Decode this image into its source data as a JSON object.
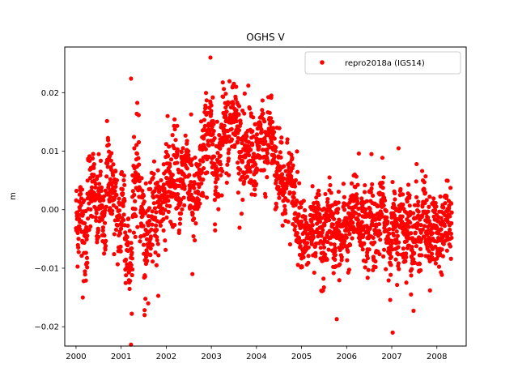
{
  "chart_data": {
    "type": "scatter",
    "title": "OGHS V",
    "xlabel": "",
    "ylabel": "m",
    "xlim": [
      1999.75,
      2008.65
    ],
    "ylim": [
      -0.0233,
      0.0278
    ],
    "x_ticks": [
      2000,
      2001,
      2002,
      2003,
      2004,
      2005,
      2006,
      2007,
      2008
    ],
    "x_tick_labels": [
      "2000",
      "2001",
      "2002",
      "2003",
      "2004",
      "2005",
      "2006",
      "2007",
      "2008"
    ],
    "y_ticks": [
      -0.02,
      -0.01,
      0.0,
      0.01,
      0.02
    ],
    "y_tick_labels": [
      "−0.02",
      "−0.01",
      "0.00",
      "0.01",
      "0.02"
    ],
    "grid": false,
    "legend_position": "top-right",
    "colors": {
      "series": "#ff0000",
      "axes": "#000000",
      "background": "#ffffff"
    },
    "series": [
      {
        "name": "repro2018a (IGS14)",
        "marker": "dot",
        "color": "#ff0000",
        "x": [
          2000.0,
          2000.08,
          2000.17,
          2000.25,
          2000.33,
          2000.42,
          2000.5,
          2000.58,
          2000.67,
          2000.75,
          2000.83,
          2000.92,
          2001.0,
          2001.08,
          2001.17,
          2001.25,
          2001.33,
          2001.42,
          2001.5,
          2001.58,
          2001.67,
          2001.75,
          2001.83,
          2001.92,
          2002.0,
          2002.08,
          2002.17,
          2002.25,
          2002.33,
          2002.42,
          2002.5,
          2002.58,
          2002.67,
          2002.75,
          2002.83,
          2002.92,
          2003.0,
          2003.08,
          2003.17,
          2003.25,
          2003.33,
          2003.42,
          2003.5,
          2003.58,
          2003.67,
          2003.75,
          2003.83,
          2003.92,
          2004.0,
          2004.08,
          2004.17,
          2004.25,
          2004.33,
          2004.42,
          2004.5,
          2004.58,
          2004.67,
          2004.75,
          2004.83,
          2004.92,
          2005.0,
          2005.08,
          2005.17,
          2005.25,
          2005.33,
          2005.42,
          2005.5,
          2005.58,
          2005.67,
          2005.75,
          2005.83,
          2005.92,
          2006.0,
          2006.08,
          2006.17,
          2006.25,
          2006.33,
          2006.42,
          2006.5,
          2006.58,
          2006.67,
          2006.75,
          2006.83,
          2006.92,
          2007.0,
          2007.08,
          2007.17,
          2007.25,
          2007.33,
          2007.42,
          2007.5,
          2007.58,
          2007.67,
          2007.75,
          2007.83,
          2007.92,
          2008.0,
          2008.08,
          2008.17,
          2008.25
        ],
        "y": [
          -0.002,
          0.0,
          -0.006,
          0.003,
          0.005,
          -0.001,
          0.002,
          -0.004,
          0.007,
          0.004,
          0.001,
          -0.003,
          0.002,
          -0.006,
          -0.01,
          0.004,
          0.006,
          0.0,
          -0.008,
          -0.003,
          0.002,
          -0.002,
          0.001,
          0.003,
          0.005,
          0.004,
          0.007,
          0.002,
          0.006,
          0.009,
          0.004,
          0.001,
          0.003,
          0.008,
          0.012,
          0.014,
          0.01,
          0.006,
          0.011,
          0.016,
          0.013,
          0.017,
          0.015,
          0.012,
          0.008,
          0.009,
          0.011,
          0.007,
          0.01,
          0.013,
          0.009,
          0.014,
          0.011,
          0.006,
          0.008,
          0.003,
          0.005,
          0.004,
          0.001,
          -0.002,
          -0.004,
          -0.006,
          -0.003,
          -0.005,
          -0.002,
          -0.007,
          -0.004,
          -0.001,
          -0.005,
          -0.003,
          -0.006,
          -0.002,
          -0.004,
          -0.001,
          0.001,
          -0.003,
          -0.002,
          -0.005,
          0.0,
          -0.004,
          -0.002,
          0.001,
          -0.003,
          -0.006,
          -0.002,
          -0.005,
          -0.001,
          -0.004,
          -0.002,
          -0.006,
          -0.003,
          -0.004,
          0.0,
          -0.003,
          -0.005,
          -0.002,
          -0.006,
          -0.004,
          -0.001,
          -0.003
        ],
        "spread": [
          0.005,
          0.004,
          0.005,
          0.005,
          0.004,
          0.005,
          0.004,
          0.005,
          0.005,
          0.004,
          0.005,
          0.005,
          0.005,
          0.004,
          0.005,
          0.005,
          0.006,
          0.004,
          0.006,
          0.005,
          0.005,
          0.005,
          0.004,
          0.005,
          0.004,
          0.005,
          0.005,
          0.004,
          0.005,
          0.004,
          0.005,
          0.005,
          0.004,
          0.005,
          0.005,
          0.004,
          0.005,
          0.005,
          0.004,
          0.004,
          0.005,
          0.004,
          0.004,
          0.005,
          0.005,
          0.004,
          0.005,
          0.005,
          0.004,
          0.004,
          0.005,
          0.004,
          0.004,
          0.005,
          0.005,
          0.004,
          0.005,
          0.004,
          0.005,
          0.004,
          0.004,
          0.004,
          0.004,
          0.004,
          0.004,
          0.005,
          0.004,
          0.004,
          0.004,
          0.004,
          0.004,
          0.004,
          0.004,
          0.004,
          0.004,
          0.004,
          0.004,
          0.004,
          0.004,
          0.004,
          0.004,
          0.004,
          0.004,
          0.004,
          0.004,
          0.004,
          0.004,
          0.004,
          0.004,
          0.004,
          0.004,
          0.004,
          0.004,
          0.004,
          0.004,
          0.004,
          0.004,
          0.004,
          0.004,
          0.004
        ],
        "outliers": [
          [
            2000.15,
            -0.015
          ],
          [
            2001.22,
            0.0224
          ],
          [
            2001.52,
            -0.018
          ],
          [
            2001.6,
            -0.016
          ],
          [
            2002.03,
            0.016
          ],
          [
            2002.58,
            -0.011
          ],
          [
            2002.98,
            0.026
          ],
          [
            2003.55,
            0.021
          ],
          [
            2003.82,
            0.0212
          ],
          [
            2004.33,
            0.0195
          ],
          [
            2005.78,
            -0.0187
          ],
          [
            2007.02,
            -0.021
          ],
          [
            2007.15,
            0.0105
          ],
          [
            2005.62,
            0.0055
          ],
          [
            2006.27,
            0.0096
          ],
          [
            2006.55,
            0.0095
          ],
          [
            2007.55,
            0.0078
          ]
        ]
      }
    ]
  }
}
